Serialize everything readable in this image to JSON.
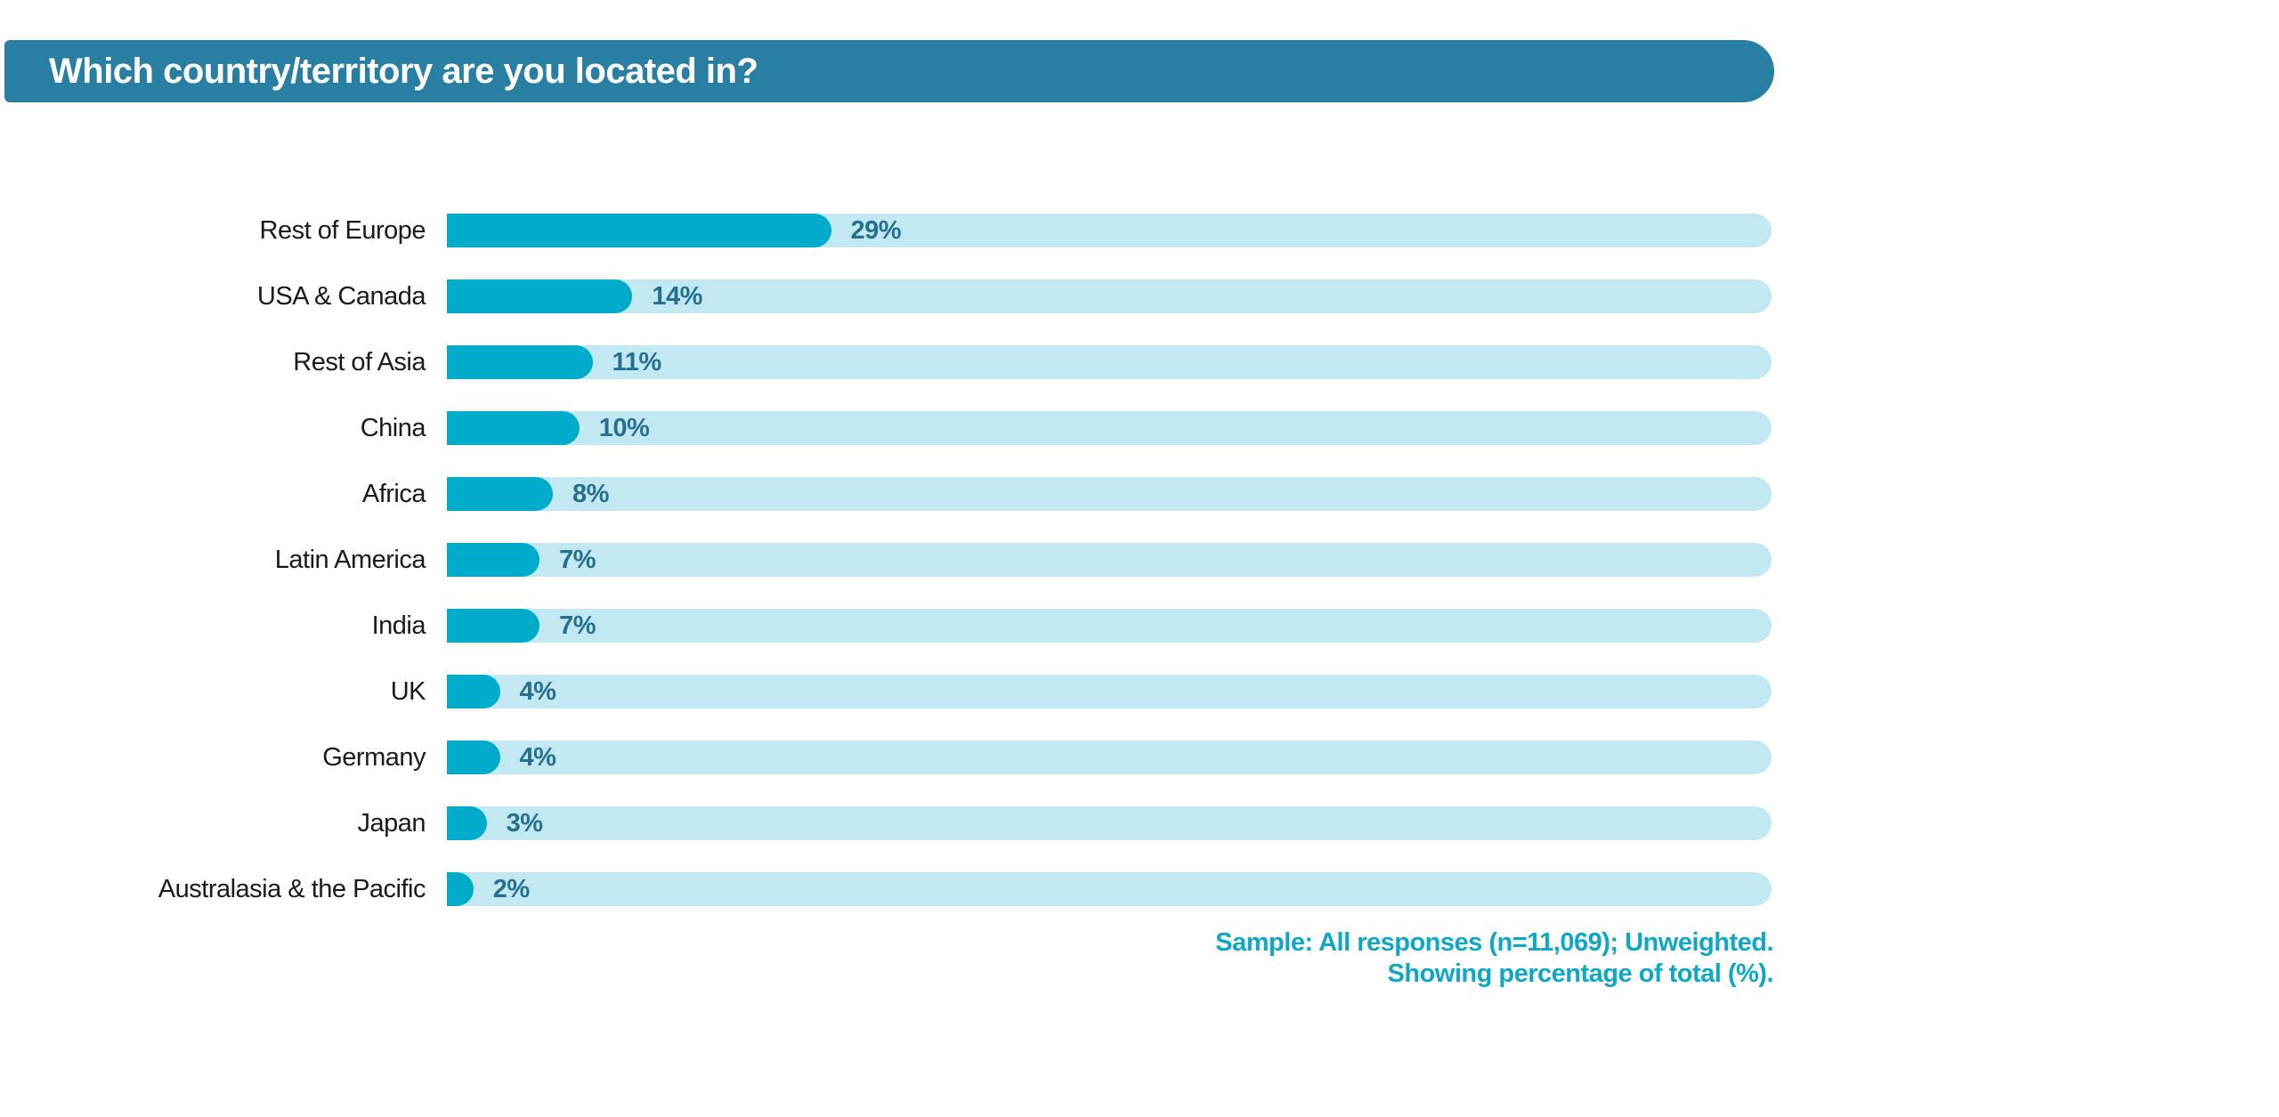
{
  "banner": {
    "title": "Which country/territory are you located in?"
  },
  "chart_data": {
    "type": "bar",
    "orientation": "horizontal",
    "title": "Which country/territory are you located in?",
    "categories": [
      "Rest of Europe",
      "USA & Canada",
      "Rest of Asia",
      "China",
      "Africa",
      "Latin America",
      "India",
      "UK",
      "Germany",
      "Japan",
      "Australasia & the Pacific"
    ],
    "values": [
      29,
      14,
      11,
      10,
      8,
      7,
      7,
      4,
      4,
      3,
      2
    ],
    "value_labels": [
      "29%",
      "14%",
      "11%",
      "10%",
      "8%",
      "7%",
      "7%",
      "4%",
      "4%",
      "3%",
      "2%"
    ],
    "xlim": [
      0,
      100
    ],
    "grid": false,
    "legend": false,
    "notes": [
      "Sample: All responses (n=11,069); Unweighted.",
      "Showing percentage of total (%)."
    ]
  },
  "footnote": {
    "line1": "Sample: All responses (n=11,069); Unweighted.",
    "line2": "Showing percentage of total (%)."
  },
  "colors": {
    "banner_bg": "#287fa2",
    "banner_text": "#ffffff",
    "bar_fill": "#00abc9",
    "bar_track": "#c2e8f2",
    "value_text": "#26708f",
    "category_text": "#1a1a1a",
    "footnote_text": "#0ea7c6",
    "page_bg": "#ffffff"
  }
}
